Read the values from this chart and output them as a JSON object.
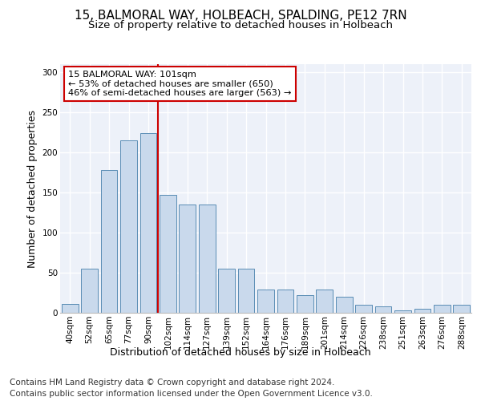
{
  "title": "15, BALMORAL WAY, HOLBEACH, SPALDING, PE12 7RN",
  "subtitle": "Size of property relative to detached houses in Holbeach",
  "xlabel": "Distribution of detached houses by size in Holbeach",
  "ylabel": "Number of detached properties",
  "categories": [
    "40sqm",
    "52sqm",
    "65sqm",
    "77sqm",
    "90sqm",
    "102sqm",
    "114sqm",
    "127sqm",
    "139sqm",
    "152sqm",
    "164sqm",
    "176sqm",
    "189sqm",
    "201sqm",
    "214sqm",
    "226sqm",
    "238sqm",
    "251sqm",
    "263sqm",
    "276sqm",
    "288sqm"
  ],
  "values": [
    11,
    55,
    178,
    215,
    224,
    147,
    135,
    135,
    55,
    55,
    29,
    29,
    22,
    29,
    20,
    10,
    8,
    3,
    5,
    10,
    10
  ],
  "bar_color": "#c9d9ec",
  "bar_edge_color": "#5a8db5",
  "vline_x_index": 5,
  "vline_color": "#cc0000",
  "annotation_text": "15 BALMORAL WAY: 101sqm\n← 53% of detached houses are smaller (650)\n46% of semi-detached houses are larger (563) →",
  "annotation_box_color": "#ffffff",
  "annotation_box_edge": "#cc0000",
  "footer1": "Contains HM Land Registry data © Crown copyright and database right 2024.",
  "footer2": "Contains public sector information licensed under the Open Government Licence v3.0.",
  "ylim": [
    0,
    310
  ],
  "yticks": [
    0,
    50,
    100,
    150,
    200,
    250,
    300
  ],
  "plot_bg_color": "#edf1f9",
  "title_fontsize": 11,
  "subtitle_fontsize": 9.5,
  "axis_label_fontsize": 9,
  "tick_fontsize": 7.5,
  "footer_fontsize": 7.5,
  "xlabel_fontsize": 9
}
